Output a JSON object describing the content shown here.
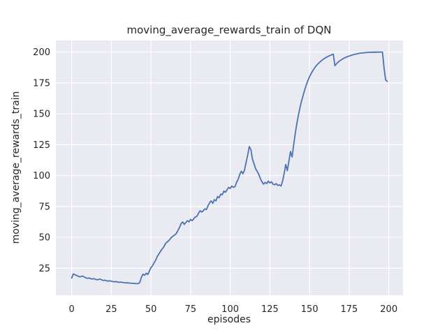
{
  "chart_data": {
    "type": "line",
    "title": "moving_average_rewards_train of DQN",
    "xlabel": "episodes",
    "ylabel": "moving_average_rewards_train",
    "x_ticks": [
      0,
      25,
      50,
      75,
      100,
      125,
      150,
      175,
      200
    ],
    "y_ticks": [
      25,
      50,
      75,
      100,
      125,
      150,
      175,
      200
    ],
    "xlim": [
      -9.95,
      208.95
    ],
    "ylim": [
      3.125,
      209.375
    ],
    "grid": true,
    "legend": "none",
    "style": "seaborn-darkgrid",
    "plot_bg_color": "#eaeaf2",
    "grid_color": "#ffffff",
    "line_color": "#4c72b0",
    "text_color": "#262626",
    "x_is_index": true,
    "series": [
      {
        "name": "moving_average_rewards_train",
        "x_start": 0,
        "x_step": 1,
        "values": [
          17.0,
          20.3,
          19.8,
          19.2,
          18.6,
          18.0,
          18.3,
          18.6,
          17.8,
          17.2,
          16.8,
          17.1,
          16.5,
          16.2,
          16.6,
          16.0,
          15.6,
          15.9,
          16.2,
          15.5,
          15.1,
          15.3,
          14.9,
          14.6,
          14.8,
          14.4,
          14.2,
          14.0,
          14.2,
          13.8,
          13.6,
          13.8,
          13.5,
          13.3,
          13.1,
          13.2,
          13.0,
          12.9,
          12.8,
          12.7,
          12.6,
          12.5,
          12.5,
          13.5,
          17.8,
          20.2,
          19.3,
          20.9,
          19.9,
          22.5,
          25.5,
          27.0,
          29.5,
          31.5,
          34.5,
          36.5,
          38.5,
          40.5,
          42.0,
          44.5,
          46.0,
          47.0,
          48.5,
          50.0,
          51.0,
          52.0,
          53.0,
          55.5,
          58.0,
          61.0,
          62.5,
          60.5,
          62.0,
          63.5,
          62.5,
          64.5,
          63.5,
          65.0,
          66.5,
          67.0,
          69.5,
          71.5,
          70.5,
          71.5,
          73.0,
          72.5,
          75.5,
          78.0,
          79.5,
          77.5,
          80.5,
          79.5,
          83.0,
          82.0,
          85.0,
          84.5,
          87.5,
          86.5,
          88.5,
          90.5,
          89.5,
          91.5,
          90.5,
          91.0,
          94.5,
          97.0,
          101.0,
          103.5,
          101.5,
          104.5,
          110.5,
          116.5,
          123.5,
          121.0,
          113.5,
          109.5,
          105.5,
          103.5,
          101.0,
          97.5,
          95.0,
          93.0,
          94.5,
          93.5,
          95.5,
          94.0,
          95.0,
          93.0,
          92.5,
          93.5,
          92.0,
          92.5,
          91.5,
          95.5,
          101.5,
          109.0,
          104.0,
          111.5,
          119.5,
          115.0,
          125.0,
          134.0,
          142.0,
          149.0,
          155.0,
          160.5,
          165.0,
          169.5,
          173.5,
          177.0,
          180.0,
          182.5,
          184.8,
          186.8,
          188.5,
          190.0,
          191.3,
          192.5,
          193.5,
          194.5,
          195.3,
          196.0,
          196.7,
          197.3,
          197.8,
          198.3,
          189.0,
          190.5,
          191.8,
          192.8,
          193.7,
          194.5,
          195.2,
          195.8,
          196.3,
          196.8,
          197.2,
          197.6,
          198.0,
          198.3,
          198.6,
          198.9,
          199.1,
          199.3,
          199.4,
          199.5,
          199.6,
          199.7,
          199.8,
          199.8,
          199.9,
          199.9,
          199.9,
          200.0,
          200.0,
          200.0,
          200.0,
          187.0,
          177.5,
          176.3
        ]
      }
    ]
  }
}
